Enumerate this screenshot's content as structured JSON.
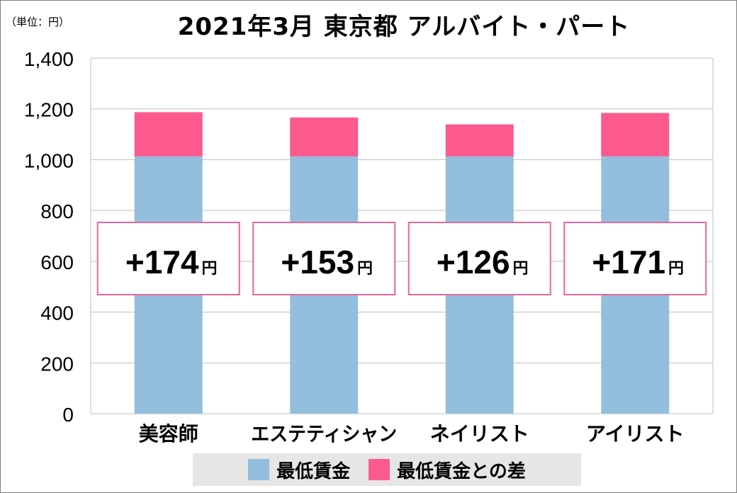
{
  "header": {
    "unit_label": "（単位：円）",
    "title": "2021年3月 東京都 アルバイト・パート"
  },
  "colors": {
    "base": "#93bedd",
    "diff": "#fc5a8d",
    "grid": "#bfbfbf",
    "box_border": "#e8669a"
  },
  "chart_data": {
    "type": "bar",
    "stacked": true,
    "title": "2021年3月 東京都 アルバイト・パート",
    "categories": [
      "美容師",
      "エステティシャン",
      "ネイリスト",
      "アイリスト"
    ],
    "series": [
      {
        "name": "最低賃金",
        "values": [
          1013,
          1013,
          1013,
          1013
        ]
      },
      {
        "name": "最低賃金との差",
        "values": [
          174,
          153,
          126,
          171
        ]
      }
    ],
    "annotations": [
      "+174",
      "+153",
      "+126",
      "+171"
    ],
    "annotation_unit": "円",
    "yticks": [
      "0",
      "200",
      "400",
      "600",
      "800",
      "1,000",
      "1,200",
      "1,400"
    ],
    "ylim": [
      0,
      1400
    ],
    "grid": true,
    "legend_position": "bottom"
  }
}
